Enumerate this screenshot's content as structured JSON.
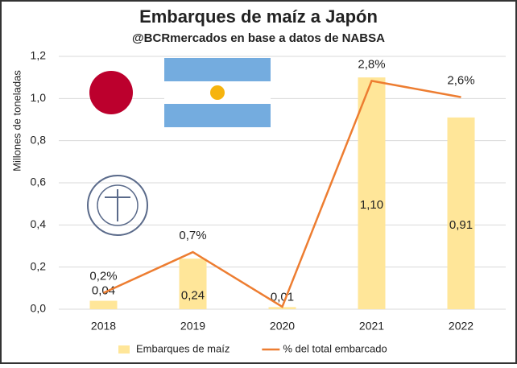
{
  "chart_data": {
    "type": "bar-line",
    "title": "Embarques de maíz a Japón",
    "subtitle": "@BCRmercados en base a datos de NABSA",
    "y_label": "Millones de toneladas",
    "categories": [
      "2018",
      "2019",
      "2020",
      "2021",
      "2022"
    ],
    "series": [
      {
        "name": "Embarques de maíz",
        "type": "bar",
        "color": "#ffe699",
        "values": [
          0.04,
          0.24,
          0.01,
          1.1,
          0.91
        ],
        "value_labels": [
          "0,04",
          "0,24",
          "0,01",
          "1,10",
          "0,91"
        ]
      },
      {
        "name": "% del total embarcado",
        "type": "line",
        "axis": "y2",
        "color": "#ed7d31",
        "values": [
          0.2,
          0.7,
          0.03,
          2.8,
          2.6
        ],
        "value_labels": [
          "0,2%",
          "0,7%",
          null,
          "2,8%",
          "2,6%"
        ]
      }
    ],
    "ylim": [
      0,
      1.2
    ],
    "yticks": [
      {
        "value": 0,
        "label": "0,0"
      },
      {
        "value": 0.2,
        "label": "0,2"
      },
      {
        "value": 0.4,
        "label": "0,4"
      },
      {
        "value": 0.6,
        "label": "0,6"
      },
      {
        "value": 0.8,
        "label": "0,8"
      },
      {
        "value": 1.0,
        "label": "1,0"
      },
      {
        "value": 1.2,
        "label": "1,2"
      }
    ],
    "y2lim": [
      0,
      3.1
    ],
    "grid": true,
    "legend": "bottom"
  }
}
